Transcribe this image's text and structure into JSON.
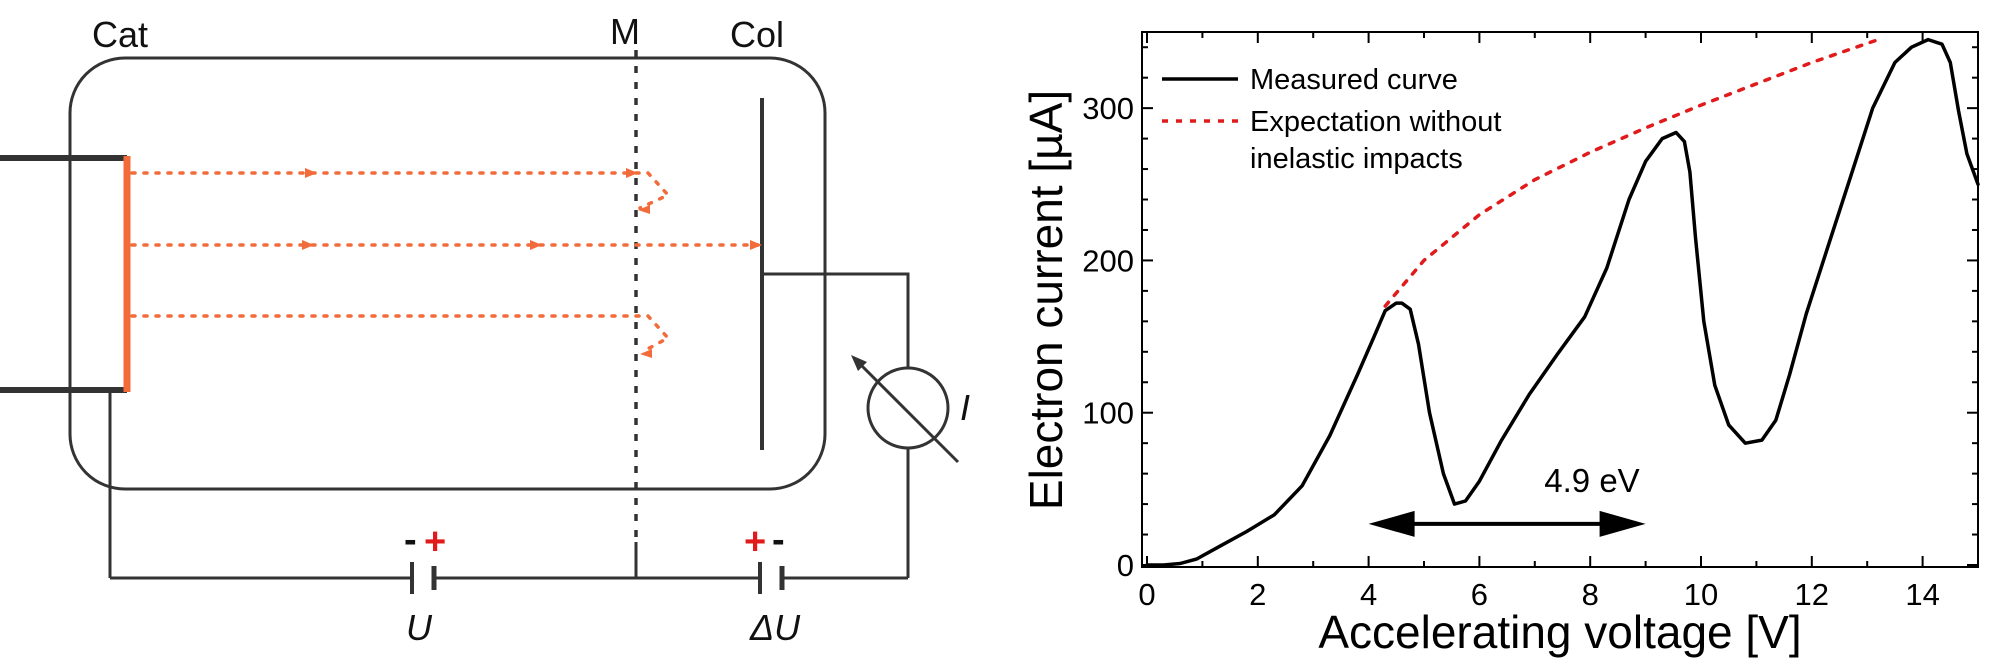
{
  "diagram": {
    "labels": {
      "cathode": "Cat",
      "mesh": "M",
      "collector": "Col",
      "current": "I",
      "voltage_u": "U",
      "voltage_du": "ΔU",
      "plus": "+",
      "minus": "-"
    },
    "colors": {
      "wire": "#333333",
      "electron": "#f26b3a",
      "polarity_plus": "#e11b1b",
      "polarity_minus": "#111111"
    }
  },
  "chart_data": {
    "type": "line",
    "xlabel": "Accelerating voltage [V]",
    "ylabel": "Electron current [µA]",
    "xlim": [
      0,
      15
    ],
    "ylim": [
      0,
      350
    ],
    "xticks": [
      "0",
      "2",
      "4",
      "6",
      "8",
      "10",
      "12",
      "14"
    ],
    "yticks": [
      "0",
      "100",
      "200",
      "300"
    ],
    "grid": false,
    "legend_position": "top-left",
    "annotation": "4.9 eV",
    "annotation_arrow_x": [
      4.0,
      9.0
    ],
    "annotation_arrow_y": 27,
    "series": [
      {
        "name": "Measured curve",
        "style": "solid",
        "color": "#000000",
        "x": [
          0.0,
          0.3,
          0.6,
          0.9,
          1.3,
          1.8,
          2.3,
          2.8,
          3.3,
          3.8,
          4.1,
          4.3,
          4.5,
          4.6,
          4.75,
          4.9,
          5.1,
          5.35,
          5.55,
          5.75,
          6.0,
          6.4,
          6.9,
          7.4,
          7.9,
          8.3,
          8.7,
          9.0,
          9.3,
          9.55,
          9.7,
          9.8,
          9.9,
          10.05,
          10.25,
          10.5,
          10.8,
          11.1,
          11.35,
          11.6,
          11.9,
          12.3,
          12.7,
          13.1,
          13.5,
          13.8,
          14.1,
          14.35,
          14.5,
          14.65,
          14.8,
          15.0
        ],
        "y": [
          0,
          0,
          1,
          4,
          12,
          22,
          33,
          52,
          85,
          125,
          150,
          167,
          172,
          172,
          168,
          145,
          100,
          60,
          40,
          42,
          55,
          82,
          112,
          138,
          163,
          195,
          240,
          265,
          280,
          284,
          278,
          258,
          215,
          160,
          118,
          92,
          80,
          82,
          95,
          125,
          165,
          210,
          255,
          300,
          330,
          340,
          345,
          342,
          330,
          298,
          270,
          250
        ]
      },
      {
        "name": "Expectation without inelastic impacts",
        "style": "dashed",
        "color": "#e11b1b",
        "x": [
          4.3,
          5.0,
          6.0,
          7.0,
          8.0,
          9.0,
          10.0,
          11.0,
          12.0,
          13.2
        ],
        "y": [
          170,
          200,
          230,
          253,
          271,
          287,
          302,
          316,
          330,
          345
        ]
      }
    ]
  }
}
